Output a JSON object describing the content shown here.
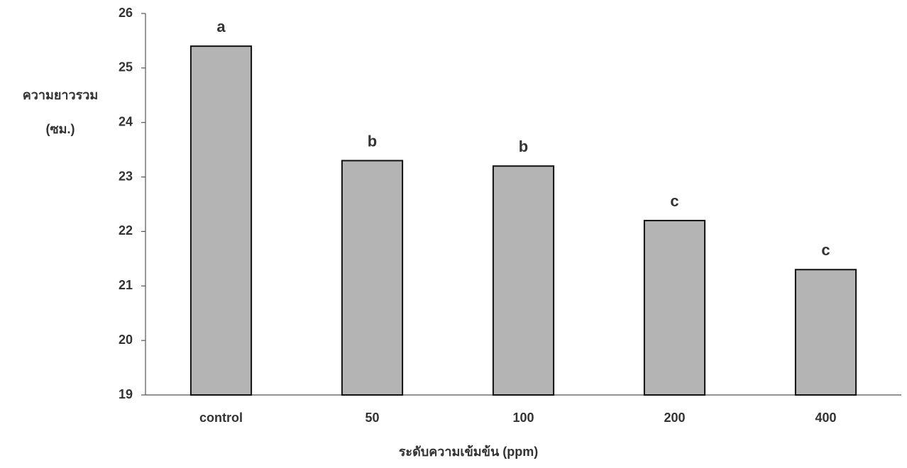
{
  "chart_data": {
    "type": "bar",
    "y_label": [
      "ความยาวรวม",
      "(ซม.)"
    ],
    "x_label": "ระดับความเข้มข้น (ppm)",
    "categories": [
      "control",
      "50",
      "100",
      "200",
      "400"
    ],
    "values": [
      25.4,
      23.3,
      23.2,
      22.2,
      21.3
    ],
    "annotations": [
      "a",
      "b",
      "b",
      "c",
      "c"
    ],
    "color": "#b4b4b4",
    "ylim": [
      19,
      26
    ],
    "yticks": [
      19,
      20,
      21,
      22,
      23,
      24,
      25,
      26
    ],
    "grid": false
  }
}
